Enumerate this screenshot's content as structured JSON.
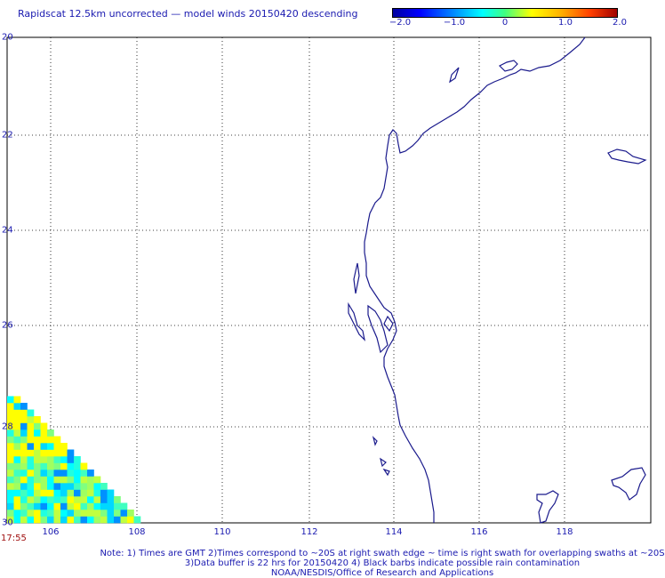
{
  "title": "Rapidscat 12.5km uncorrected — model winds 20150420 descending",
  "colorbar": {
    "ticks": [
      "−2.0",
      "−1.0",
      "0",
      "1.0",
      "2.0"
    ],
    "colors": [
      "#0000a0",
      "#0000ff",
      "#00ffff",
      "#ffff00",
      "#ff4000",
      "#a00000"
    ]
  },
  "axes": {
    "lat_labels": [
      "20",
      "22",
      "24",
      "26",
      "28",
      "30"
    ],
    "lon_labels": [
      "106",
      "108",
      "110",
      "112",
      "114",
      "116",
      "118"
    ]
  },
  "time_label": "17:55",
  "notes": {
    "line1": "Note: 1) Times are GMT 2)Times correspond to ~20S at right swath edge ~ time is right swath for overlapping swaths at ~20S",
    "line2": "3)Data buffer is 22 hrs for 20150420 4) Black barbs indicate possible rain contamination",
    "line3": "NOAA/NESDIS/Office of Research and Applications"
  }
}
